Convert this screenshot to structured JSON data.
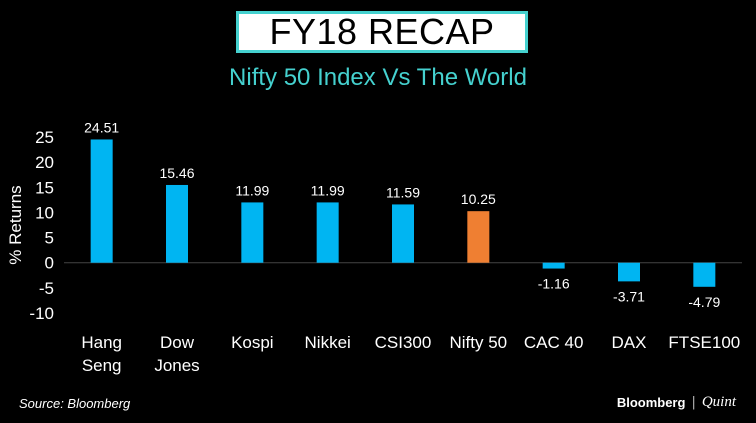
{
  "header": {
    "title": "FY18 RECAP",
    "subtitle": "Nifty 50 Index Vs The World"
  },
  "colors": {
    "accent": "#45d1cf",
    "bar": "#00b5f2",
    "highlight": "#ef7f32"
  },
  "chart_data": {
    "type": "bar",
    "title": "FY18 RECAP",
    "subtitle": "Nifty 50 Index Vs The World",
    "xlabel": "",
    "ylabel": "% Returns",
    "ylim": [
      -10,
      25
    ],
    "yticks": [
      25,
      20,
      15,
      10,
      5,
      0,
      -5,
      -10
    ],
    "categories": [
      [
        "Hang",
        "Seng"
      ],
      [
        "Dow",
        "Jones"
      ],
      [
        "Kospi"
      ],
      [
        "Nikkei"
      ],
      [
        "CSI300"
      ],
      [
        "Nifty 50"
      ],
      [
        "CAC 40"
      ],
      [
        "DAX"
      ],
      [
        "FTSE100"
      ]
    ],
    "values": [
      24.51,
      15.46,
      11.99,
      11.99,
      11.59,
      10.25,
      -1.16,
      -3.71,
      -4.79
    ],
    "value_labels": [
      "24.51",
      "15.46",
      "11.99",
      "11.99",
      "11.59",
      "10.25",
      "-1.16",
      "-3.71",
      "-4.79"
    ],
    "highlight_category": "Nifty 50",
    "grid": false
  },
  "footer": {
    "source": "Source: Bloomberg",
    "brand_primary": "Bloomberg",
    "brand_separator": "|",
    "brand_secondary": "Quint"
  }
}
